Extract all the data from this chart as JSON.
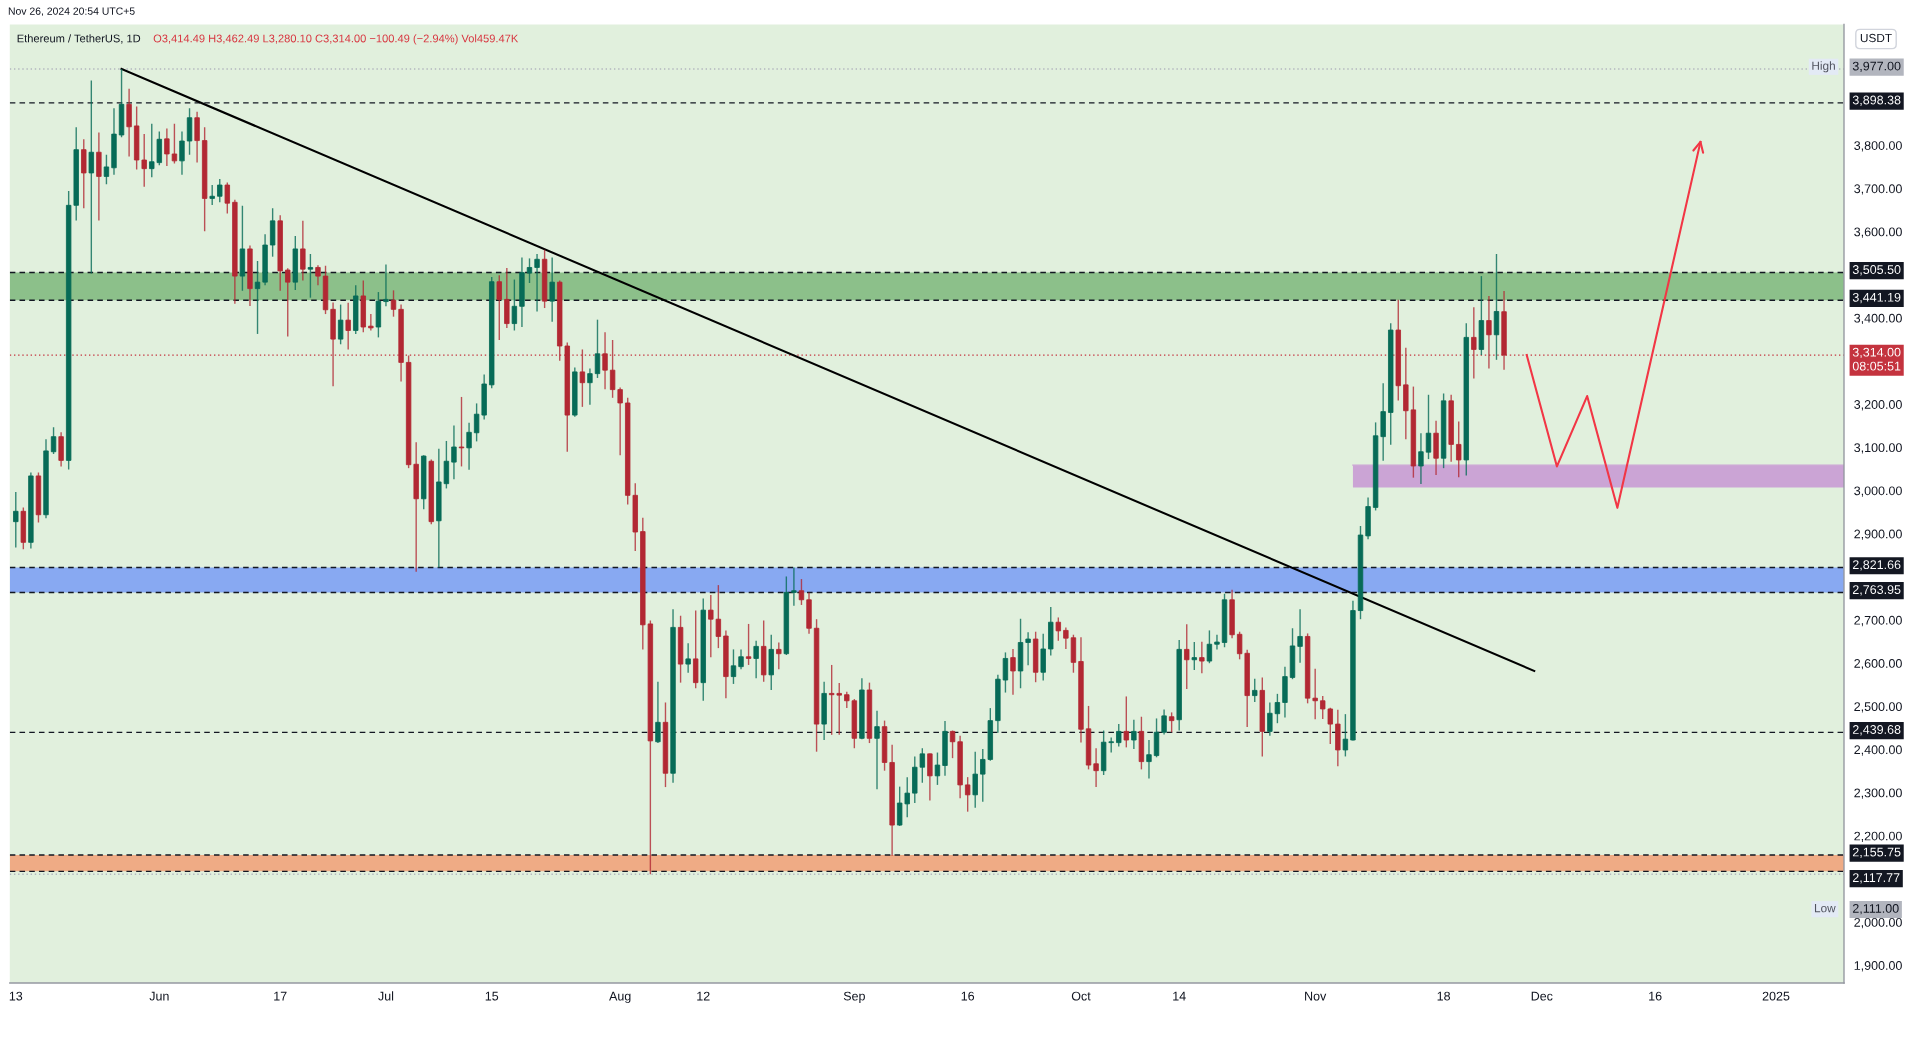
{
  "chart_data": {
    "type": "candlestick",
    "title": "Ethereum / TetherUS, 1D",
    "subtitle": "O3,414.49 H3,462.49 L3,280.10 C3,314.00 −100.49 (−2.94%) Vol459.47K",
    "ylabel": "USDT",
    "x": [
      "2024-05-13",
      "2024-05-14",
      "2024-05-15",
      "2024-05-16",
      "2024-05-17",
      "2024-05-18",
      "2024-05-19",
      "2024-05-20",
      "2024-05-21",
      "2024-05-22",
      "2024-05-23",
      "2024-05-24",
      "2024-05-25",
      "2024-05-26",
      "2024-05-27",
      "2024-05-28",
      "2024-05-29",
      "2024-05-30",
      "2024-05-31",
      "2024-06-01",
      "2024-06-02",
      "2024-06-03",
      "2024-06-04",
      "2024-06-05",
      "2024-06-06",
      "2024-06-07",
      "2024-06-08",
      "2024-06-09",
      "2024-06-10",
      "2024-06-11",
      "2024-06-12",
      "2024-06-13",
      "2024-06-14",
      "2024-06-15",
      "2024-06-16",
      "2024-06-17",
      "2024-06-18",
      "2024-06-19",
      "2024-06-20",
      "2024-06-21",
      "2024-06-22",
      "2024-06-23",
      "2024-06-24",
      "2024-06-25",
      "2024-06-26",
      "2024-06-27",
      "2024-06-28",
      "2024-06-29",
      "2024-06-30",
      "2024-07-01",
      "2024-07-02",
      "2024-07-03",
      "2024-07-04",
      "2024-07-05",
      "2024-07-06",
      "2024-07-07",
      "2024-07-08",
      "2024-07-09",
      "2024-07-10",
      "2024-07-11",
      "2024-07-12",
      "2024-07-13",
      "2024-07-14",
      "2024-07-15",
      "2024-07-16",
      "2024-07-17",
      "2024-07-18",
      "2024-07-19",
      "2024-07-20",
      "2024-07-21",
      "2024-07-22",
      "2024-07-23",
      "2024-07-24",
      "2024-07-25",
      "2024-07-26",
      "2024-07-27",
      "2024-07-28",
      "2024-07-29",
      "2024-07-30",
      "2024-07-31",
      "2024-08-01",
      "2024-08-02",
      "2024-08-03",
      "2024-08-04",
      "2024-08-05",
      "2024-08-06",
      "2024-08-07",
      "2024-08-08",
      "2024-08-09",
      "2024-08-10",
      "2024-08-11",
      "2024-08-12",
      "2024-08-13",
      "2024-08-14",
      "2024-08-15",
      "2024-08-16",
      "2024-08-17",
      "2024-08-18",
      "2024-08-19",
      "2024-08-20",
      "2024-08-21",
      "2024-08-22",
      "2024-08-23",
      "2024-08-24",
      "2024-08-25",
      "2024-08-26",
      "2024-08-27",
      "2024-08-28",
      "2024-08-29",
      "2024-08-30",
      "2024-08-31",
      "2024-09-01",
      "2024-09-02",
      "2024-09-03",
      "2024-09-04",
      "2024-09-05",
      "2024-09-06",
      "2024-09-07",
      "2024-09-08",
      "2024-09-09",
      "2024-09-10",
      "2024-09-11",
      "2024-09-12",
      "2024-09-13",
      "2024-09-14",
      "2024-09-15",
      "2024-09-16",
      "2024-09-17",
      "2024-09-18",
      "2024-09-19",
      "2024-09-20",
      "2024-09-21",
      "2024-09-22",
      "2024-09-23",
      "2024-09-24",
      "2024-09-25",
      "2024-09-26",
      "2024-09-27",
      "2024-09-28",
      "2024-09-29",
      "2024-09-30",
      "2024-10-01",
      "2024-10-02",
      "2024-10-03",
      "2024-10-04",
      "2024-10-05",
      "2024-10-06",
      "2024-10-07",
      "2024-10-08",
      "2024-10-09",
      "2024-10-10",
      "2024-10-11",
      "2024-10-12",
      "2024-10-13",
      "2024-10-14",
      "2024-10-15",
      "2024-10-16",
      "2024-10-17",
      "2024-10-18",
      "2024-10-19",
      "2024-10-20",
      "2024-10-21",
      "2024-10-22",
      "2024-10-23",
      "2024-10-24",
      "2024-10-25",
      "2024-10-26",
      "2024-10-27",
      "2024-10-28",
      "2024-10-29",
      "2024-10-30",
      "2024-10-31",
      "2024-11-01",
      "2024-11-02",
      "2024-11-03",
      "2024-11-04",
      "2024-11-05",
      "2024-11-06",
      "2024-11-07",
      "2024-11-08",
      "2024-11-09",
      "2024-11-10",
      "2024-11-11",
      "2024-11-12",
      "2024-11-13",
      "2024-11-14",
      "2024-11-15",
      "2024-11-16",
      "2024-11-17",
      "2024-11-18",
      "2024-11-19",
      "2024-11-20",
      "2024-11-21",
      "2024-11-22",
      "2024-11-23",
      "2024-11-24",
      "2024-11-25",
      "2024-11-26"
    ],
    "ohlc": [
      [
        2928,
        2997,
        2868,
        2952
      ],
      [
        2952,
        2961,
        2864,
        2880
      ],
      [
        2880,
        3042,
        2866,
        3034
      ],
      [
        3034,
        3042,
        2926,
        2944
      ],
      [
        2944,
        3119,
        2936,
        3092
      ],
      [
        3090,
        3147,
        3085,
        3125
      ],
      [
        3125,
        3135,
        3056,
        3070
      ],
      [
        3070,
        3694,
        3049,
        3661
      ],
      [
        3661,
        3842,
        3626,
        3790
      ],
      [
        3790,
        3814,
        3654,
        3736
      ],
      [
        3736,
        3950,
        3503,
        3784
      ],
      [
        3784,
        3830,
        3626,
        3728
      ],
      [
        3728,
        3778,
        3710,
        3750
      ],
      [
        3748,
        3886,
        3732,
        3826
      ],
      [
        3824,
        3977,
        3819,
        3895
      ],
      [
        3895,
        3931,
        3774,
        3843
      ],
      [
        3845,
        3890,
        3744,
        3766
      ],
      [
        3766,
        3826,
        3704,
        3746
      ],
      [
        3746,
        3850,
        3726,
        3762
      ],
      [
        3760,
        3832,
        3754,
        3814
      ],
      [
        3815,
        3839,
        3752,
        3780
      ],
      [
        3780,
        3850,
        3758,
        3764
      ],
      [
        3764,
        3832,
        3732,
        3810
      ],
      [
        3810,
        3886,
        3778,
        3864
      ],
      [
        3864,
        3878,
        3760,
        3811
      ],
      [
        3811,
        3842,
        3601,
        3677
      ],
      [
        3677,
        3708,
        3662,
        3682
      ],
      [
        3682,
        3722,
        3668,
        3708
      ],
      [
        3708,
        3714,
        3642,
        3666
      ],
      [
        3668,
        3674,
        3433,
        3497
      ],
      [
        3497,
        3660,
        3463,
        3560
      ],
      [
        3560,
        3568,
        3428,
        3468
      ],
      [
        3468,
        3532,
        3363,
        3483
      ],
      [
        3483,
        3594,
        3476,
        3569
      ],
      [
        3569,
        3654,
        3542,
        3625
      ],
      [
        3625,
        3638,
        3463,
        3509
      ],
      [
        3511,
        3515,
        3357,
        3483
      ],
      [
        3483,
        3590,
        3465,
        3560
      ],
      [
        3560,
        3625,
        3487,
        3513
      ],
      [
        3513,
        3548,
        3447,
        3517
      ],
      [
        3517,
        3522,
        3476,
        3497
      ],
      [
        3497,
        3521,
        3409,
        3419
      ],
      [
        3420,
        3436,
        3242,
        3351
      ],
      [
        3351,
        3431,
        3339,
        3395
      ],
      [
        3395,
        3435,
        3327,
        3371
      ],
      [
        3371,
        3476,
        3363,
        3451
      ],
      [
        3451,
        3487,
        3367,
        3379
      ],
      [
        3381,
        3409,
        3371,
        3377
      ],
      [
        3379,
        3460,
        3355,
        3439
      ],
      [
        3438,
        3524,
        3427,
        3443
      ],
      [
        3441,
        3464,
        3403,
        3420
      ],
      [
        3420,
        3431,
        3253,
        3297
      ],
      [
        3297,
        3313,
        3052,
        3060
      ],
      [
        3061,
        3112,
        2812,
        2981
      ],
      [
        2981,
        3082,
        2957,
        3080
      ],
      [
        3068,
        3072,
        2922,
        2928
      ],
      [
        2930,
        3097,
        2822,
        3020
      ],
      [
        3016,
        3115,
        3005,
        3068
      ],
      [
        3066,
        3151,
        3026,
        3101
      ],
      [
        3101,
        3217,
        3056,
        3099
      ],
      [
        3099,
        3157,
        3048,
        3135
      ],
      [
        3134,
        3202,
        3114,
        3177
      ],
      [
        3175,
        3269,
        3165,
        3247
      ],
      [
        3245,
        3495,
        3237,
        3484
      ],
      [
        3484,
        3499,
        3349,
        3443
      ],
      [
        3443,
        3516,
        3377,
        3387
      ],
      [
        3387,
        3489,
        3371,
        3427
      ],
      [
        3427,
        3540,
        3379,
        3505
      ],
      [
        3504,
        3538,
        3481,
        3517
      ],
      [
        3517,
        3548,
        3415,
        3536
      ],
      [
        3536,
        3558,
        3423,
        3439
      ],
      [
        3439,
        3540,
        3391,
        3483
      ],
      [
        3483,
        3487,
        3301,
        3335
      ],
      [
        3335,
        3343,
        3090,
        3175
      ],
      [
        3175,
        3285,
        3171,
        3275
      ],
      [
        3275,
        3327,
        3194,
        3250
      ],
      [
        3250,
        3283,
        3199,
        3271
      ],
      [
        3271,
        3396,
        3261,
        3317
      ],
      [
        3317,
        3367,
        3235,
        3279
      ],
      [
        3279,
        3349,
        3215,
        3234
      ],
      [
        3234,
        3239,
        3082,
        3203
      ],
      [
        3203,
        3215,
        2968,
        2989
      ],
      [
        2989,
        3017,
        2860,
        2904
      ],
      [
        2905,
        2937,
        2632,
        2689
      ],
      [
        2691,
        2699,
        2111,
        2420
      ],
      [
        2418,
        2557,
        2415,
        2463
      ],
      [
        2463,
        2509,
        2313,
        2345
      ],
      [
        2345,
        2725,
        2323,
        2683
      ],
      [
        2683,
        2710,
        2555,
        2598
      ],
      [
        2598,
        2646,
        2578,
        2610
      ],
      [
        2610,
        2722,
        2542,
        2555
      ],
      [
        2555,
        2750,
        2513,
        2723
      ],
      [
        2723,
        2758,
        2614,
        2702
      ],
      [
        2702,
        2781,
        2635,
        2662
      ],
      [
        2663,
        2676,
        2519,
        2569
      ],
      [
        2569,
        2632,
        2552,
        2594
      ],
      [
        2592,
        2632,
        2586,
        2615
      ],
      [
        2615,
        2691,
        2596,
        2611
      ],
      [
        2611,
        2652,
        2565,
        2639
      ],
      [
        2639,
        2699,
        2557,
        2573
      ],
      [
        2573,
        2666,
        2538,
        2632
      ],
      [
        2632,
        2648,
        2586,
        2622
      ],
      [
        2622,
        2801,
        2619,
        2764
      ],
      [
        2764,
        2822,
        2733,
        2768
      ],
      [
        2768,
        2795,
        2735,
        2747
      ],
      [
        2747,
        2764,
        2668,
        2681
      ],
      [
        2681,
        2702,
        2395,
        2459
      ],
      [
        2459,
        2557,
        2422,
        2530
      ],
      [
        2530,
        2596,
        2434,
        2527
      ],
      [
        2530,
        2554,
        2434,
        2526
      ],
      [
        2527,
        2534,
        2496,
        2513
      ],
      [
        2513,
        2517,
        2403,
        2426
      ],
      [
        2426,
        2565,
        2424,
        2538
      ],
      [
        2538,
        2555,
        2415,
        2426
      ],
      [
        2426,
        2490,
        2308,
        2453
      ],
      [
        2453,
        2467,
        2351,
        2370
      ],
      [
        2370,
        2411,
        2154,
        2225
      ],
      [
        2225,
        2314,
        2223,
        2276
      ],
      [
        2274,
        2336,
        2243,
        2299
      ],
      [
        2299,
        2384,
        2276,
        2359
      ],
      [
        2359,
        2403,
        2323,
        2390
      ],
      [
        2390,
        2391,
        2282,
        2339
      ],
      [
        2339,
        2393,
        2318,
        2364
      ],
      [
        2363,
        2466,
        2339,
        2442
      ],
      [
        2442,
        2444,
        2380,
        2418
      ],
      [
        2418,
        2432,
        2287,
        2318
      ],
      [
        2318,
        2336,
        2256,
        2295
      ],
      [
        2295,
        2395,
        2265,
        2343
      ],
      [
        2343,
        2401,
        2279,
        2377
      ],
      [
        2377,
        2496,
        2374,
        2467
      ],
      [
        2467,
        2573,
        2439,
        2563
      ],
      [
        2561,
        2625,
        2532,
        2611
      ],
      [
        2613,
        2633,
        2527,
        2582
      ],
      [
        2582,
        2703,
        2542,
        2648
      ],
      [
        2648,
        2672,
        2595,
        2656
      ],
      [
        2656,
        2673,
        2556,
        2579
      ],
      [
        2579,
        2668,
        2560,
        2633
      ],
      [
        2633,
        2730,
        2618,
        2695
      ],
      [
        2695,
        2706,
        2652,
        2675
      ],
      [
        2676,
        2683,
        2633,
        2658
      ],
      [
        2659,
        2666,
        2578,
        2602
      ],
      [
        2604,
        2660,
        2416,
        2447
      ],
      [
        2448,
        2501,
        2354,
        2364
      ],
      [
        2367,
        2403,
        2313,
        2351
      ],
      [
        2351,
        2444,
        2341,
        2417
      ],
      [
        2416,
        2428,
        2393,
        2418
      ],
      [
        2416,
        2459,
        2407,
        2442
      ],
      [
        2442,
        2523,
        2405,
        2422
      ],
      [
        2422,
        2469,
        2401,
        2442
      ],
      [
        2442,
        2476,
        2354,
        2372
      ],
      [
        2372,
        2422,
        2333,
        2388
      ],
      [
        2386,
        2472,
        2382,
        2440
      ],
      [
        2440,
        2493,
        2435,
        2478
      ],
      [
        2476,
        2486,
        2440,
        2467
      ],
      [
        2469,
        2654,
        2444,
        2632
      ],
      [
        2632,
        2690,
        2540,
        2608
      ],
      [
        2608,
        2649,
        2584,
        2613
      ],
      [
        2613,
        2650,
        2577,
        2605
      ],
      [
        2605,
        2676,
        2600,
        2644
      ],
      [
        2644,
        2666,
        2632,
        2649
      ],
      [
        2648,
        2761,
        2637,
        2747
      ],
      [
        2747,
        2770,
        2658,
        2666
      ],
      [
        2667,
        2673,
        2609,
        2622
      ],
      [
        2623,
        2631,
        2452,
        2525
      ],
      [
        2525,
        2564,
        2510,
        2537
      ],
      [
        2537,
        2567,
        2384,
        2442
      ],
      [
        2442,
        2509,
        2432,
        2484
      ],
      [
        2483,
        2529,
        2461,
        2509
      ],
      [
        2509,
        2592,
        2474,
        2569
      ],
      [
        2567,
        2681,
        2563,
        2640
      ],
      [
        2639,
        2725,
        2601,
        2662
      ],
      [
        2662,
        2669,
        2507,
        2519
      ],
      [
        2519,
        2587,
        2470,
        2513
      ],
      [
        2513,
        2524,
        2471,
        2494
      ],
      [
        2494,
        2497,
        2413,
        2459
      ],
      [
        2459,
        2492,
        2361,
        2399
      ],
      [
        2399,
        2482,
        2384,
        2424
      ],
      [
        2422,
        2745,
        2421,
        2722
      ],
      [
        2722,
        2918,
        2702,
        2897
      ],
      [
        2895,
        2984,
        2887,
        2963
      ],
      [
        2961,
        3158,
        2954,
        3127
      ],
      [
        3125,
        3249,
        3069,
        3183
      ],
      [
        3181,
        3388,
        3106,
        3372
      ],
      [
        3372,
        3442,
        3209,
        3243
      ],
      [
        3245,
        3331,
        3119,
        3185
      ],
      [
        3187,
        3241,
        3030,
        3057
      ],
      [
        3057,
        3133,
        3015,
        3090
      ],
      [
        3089,
        3222,
        3073,
        3133
      ],
      [
        3133,
        3162,
        3036,
        3075
      ],
      [
        3075,
        3225,
        3052,
        3208
      ],
      [
        3208,
        3222,
        3067,
        3107
      ],
      [
        3107,
        3160,
        3031,
        3071
      ],
      [
        3071,
        3388,
        3035,
        3355
      ],
      [
        3355,
        3425,
        3260,
        3327
      ],
      [
        3327,
        3497,
        3314,
        3394
      ],
      [
        3394,
        3451,
        3283,
        3361
      ],
      [
        3361,
        3548,
        3303,
        3415
      ],
      [
        3414.49,
        3462.49,
        3280.1,
        3314.0
      ]
    ],
    "colors": [
      "#076b57",
      "#b22833",
      "#076b57",
      "#b22833",
      "#076b57",
      "#076b57",
      "#b22833",
      "#076b57",
      "#076b57",
      "#b22833",
      "#076b57",
      "#b22833",
      "#076b57",
      "#076b57",
      "#076b57",
      "#b22833",
      "#b22833",
      "#b22833",
      "#076b57",
      "#076b57",
      "#b22833",
      "#b22833",
      "#076b57",
      "#076b57",
      "#b22833",
      "#b22833",
      "#076b57",
      "#076b57",
      "#b22833",
      "#b22833",
      "#076b57",
      "#b22833",
      "#076b57",
      "#076b57",
      "#076b57",
      "#b22833",
      "#b22833",
      "#076b57",
      "#b22833",
      "#076b57",
      "#b22833",
      "#b22833",
      "#b22833",
      "#076b57",
      "#b22833",
      "#076b57",
      "#b22833",
      "#b22833",
      "#076b57",
      "#076b57",
      "#b22833",
      "#b22833",
      "#b22833",
      "#b22833",
      "#076b57",
      "#b22833",
      "#076b57",
      "#076b57",
      "#076b57",
      "#b22833",
      "#076b57",
      "#076b57",
      "#076b57",
      "#076b57",
      "#b22833",
      "#b22833",
      "#076b57",
      "#076b57",
      "#076b57",
      "#076b57",
      "#b22833",
      "#076b57",
      "#b22833",
      "#b22833",
      "#076b57",
      "#b22833",
      "#076b57",
      "#076b57",
      "#b22833",
      "#b22833",
      "#b22833",
      "#b22833",
      "#b22833",
      "#b22833",
      "#b22833",
      "#076b57",
      "#b22833",
      "#076b57",
      "#b22833",
      "#076b57",
      "#b22833",
      "#076b57",
      "#b22833",
      "#b22833",
      "#b22833",
      "#076b57",
      "#076b57",
      "#b22833",
      "#076b57",
      "#b22833",
      "#076b57",
      "#b22833",
      "#076b57",
      "#076b57",
      "#b22833",
      "#b22833",
      "#b22833",
      "#076b57",
      "#b22833",
      "#b22833",
      "#b22833",
      "#b22833",
      "#076b57",
      "#b22833",
      "#076b57",
      "#b22833",
      "#b22833",
      "#076b57",
      "#076b57",
      "#076b57",
      "#076b57",
      "#b22833",
      "#076b57",
      "#076b57",
      "#b22833",
      "#b22833",
      "#b22833",
      "#076b57",
      "#076b57",
      "#076b57",
      "#076b57",
      "#076b57",
      "#b22833",
      "#076b57",
      "#076b57",
      "#b22833",
      "#076b57",
      "#076b57",
      "#b22833",
      "#b22833",
      "#b22833",
      "#b22833",
      "#b22833",
      "#b22833",
      "#076b57",
      "#076b57",
      "#076b57",
      "#b22833",
      "#076b57",
      "#b22833",
      "#076b57",
      "#076b57",
      "#076b57",
      "#b22833",
      "#076b57",
      "#b22833",
      "#076b57",
      "#b22833",
      "#076b57",
      "#076b57",
      "#076b57",
      "#b22833",
      "#b22833",
      "#b22833",
      "#076b57",
      "#b22833",
      "#076b57",
      "#076b57",
      "#076b57",
      "#076b57",
      "#076b57",
      "#b22833",
      "#b22833",
      "#b22833",
      "#b22833",
      "#b22833",
      "#076b57",
      "#076b57",
      "#076b57",
      "#076b57",
      "#076b57",
      "#076b57",
      "#076b57",
      "#b22833",
      "#b22833",
      "#b22833",
      "#076b57",
      "#076b57",
      "#b22833",
      "#076b57",
      "#b22833",
      "#b22833",
      "#076b57",
      "#b22833",
      "#076b57",
      "#b22833",
      "#076b57",
      "#b22833"
    ],
    "series": [
      {
        "type": "line",
        "x": [
          "2024-11-06",
          "2025-01-10"
        ],
        "values": [
          3059,
          3059
        ],
        "lower": [
          3007,
          3007
        ],
        "upper": [
          3059,
          3059
        ],
        "color": "#cba4d5"
      },
      {
        "type": "line",
        "x": [
          "2024-05-27",
          "2024-11-30"
        ],
        "values": [
          3977,
          2582
        ],
        "color": "#000000"
      },
      {
        "type": "line",
        "x": [
          "2024-11-29",
          "2024-12-03",
          "2024-12-07",
          "2024-12-11",
          "2024-12-22"
        ],
        "values": [
          3314,
          3056,
          3219,
          2960,
          3808
        ],
        "color": "#f23645"
      }
    ],
    "bands": [
      {
        "axis": "y",
        "from": 3441.19,
        "to": 3505.5,
        "color": "#8cc08a"
      },
      {
        "axis": "y",
        "from": 2763.95,
        "to": 2821.66,
        "color": "#88a9f2"
      },
      {
        "axis": "y",
        "from": 2117.77,
        "to": 2155.75,
        "color": "#efab85"
      }
    ],
    "ref_lines": [
      {
        "axis": "y",
        "value": 3977,
        "label": "3,977.00",
        "color": "#b2b5be",
        "line_style": "dotted"
      },
      {
        "axis": "y",
        "value": 3898.38,
        "label": "3,898.38",
        "color": "#131722",
        "line_style": "dashed"
      },
      {
        "axis": "y",
        "value": 3505.5,
        "label": "3,505.50",
        "color": "#131722",
        "line_style": "dashed"
      },
      {
        "axis": "y",
        "value": 3441.19,
        "label": "3,441.19",
        "color": "#131722",
        "line_style": "dashed"
      },
      {
        "axis": "y",
        "value": 3314,
        "label": "3,314.00\n08:05:51",
        "color": "#c4333e",
        "line_style": "dotted"
      },
      {
        "axis": "y",
        "value": 2821.66,
        "label": "2,821.66",
        "color": "#131722",
        "line_style": "dashed"
      },
      {
        "axis": "y",
        "value": 2763.95,
        "label": "2,763.95",
        "color": "#131722",
        "line_style": "dashed"
      },
      {
        "axis": "y",
        "value": 2439.68,
        "label": "2,439.68",
        "color": "#131722",
        "line_style": "dashed"
      },
      {
        "axis": "y",
        "value": 2155.75,
        "label": "2,155.75",
        "color": "#131722",
        "line_style": "dashed"
      },
      {
        "axis": "y",
        "value": 2117.77,
        "label": "2,117.77",
        "color": "#131722",
        "line_style": "dashed"
      },
      {
        "axis": "y",
        "value": 2111,
        "label": "2,111.00",
        "color": "#b2b5be",
        "line_style": "dotted"
      }
    ],
    "annotations": [
      "Nov 26, 2024 20:54 UTC+5",
      {
        "text": "High",
        "y": 3977
      },
      {
        "text": "Low",
        "y": 2111
      }
    ],
    "xlim": [
      "2024-05-12T05:00",
      "2025-01-10"
    ],
    "xticks": [
      {
        "value": "2024-05-13",
        "label": "13"
      },
      {
        "value": "2024-06-01",
        "label": "Jun"
      },
      {
        "value": "2024-06-17",
        "label": "17"
      },
      {
        "value": "2024-07-01",
        "label": "Jul"
      },
      {
        "value": "2024-07-15",
        "label": "15"
      },
      {
        "value": "2024-08-01",
        "label": "Aug"
      },
      {
        "value": "2024-08-12",
        "label": "12"
      },
      {
        "value": "2024-09-01",
        "label": "Sep"
      },
      {
        "value": "2024-09-16",
        "label": "16"
      },
      {
        "value": "2024-10-01",
        "label": "Oct"
      },
      {
        "value": "2024-10-14",
        "label": "14"
      },
      {
        "value": "2024-11-01",
        "label": "Nov"
      },
      {
        "value": "2024-11-18",
        "label": "18"
      },
      {
        "value": "2024-12-01",
        "label": "Dec"
      },
      {
        "value": "2024-12-16",
        "label": "16"
      },
      {
        "value": "2025-01-01",
        "label": "2025"
      }
    ],
    "ylim": [
      1859,
      4080
    ],
    "yticks": [
      {
        "value": 1900,
        "label": "1,900.00"
      },
      {
        "value": 2000,
        "label": "2,000.00"
      },
      {
        "value": 2200,
        "label": "2,200.00"
      },
      {
        "value": 2300,
        "label": "2,300.00"
      },
      {
        "value": 2400,
        "label": "2,400.00"
      },
      {
        "value": 2500,
        "label": "2,500.00"
      },
      {
        "value": 2600,
        "label": "2,600.00"
      },
      {
        "value": 2700,
        "label": "2,700.00"
      },
      {
        "value": 2900,
        "label": "2,900.00"
      },
      {
        "value": 3000,
        "label": "3,000.00"
      },
      {
        "value": 3100,
        "label": "3,100.00"
      },
      {
        "value": 3200,
        "label": "3,200.00"
      },
      {
        "value": 3400,
        "label": "3,400.00"
      },
      {
        "value": 3600,
        "label": "3,600.00"
      },
      {
        "value": 3700,
        "label": "3,700.00"
      },
      {
        "value": 3800,
        "label": "3,800.00"
      }
    ]
  }
}
